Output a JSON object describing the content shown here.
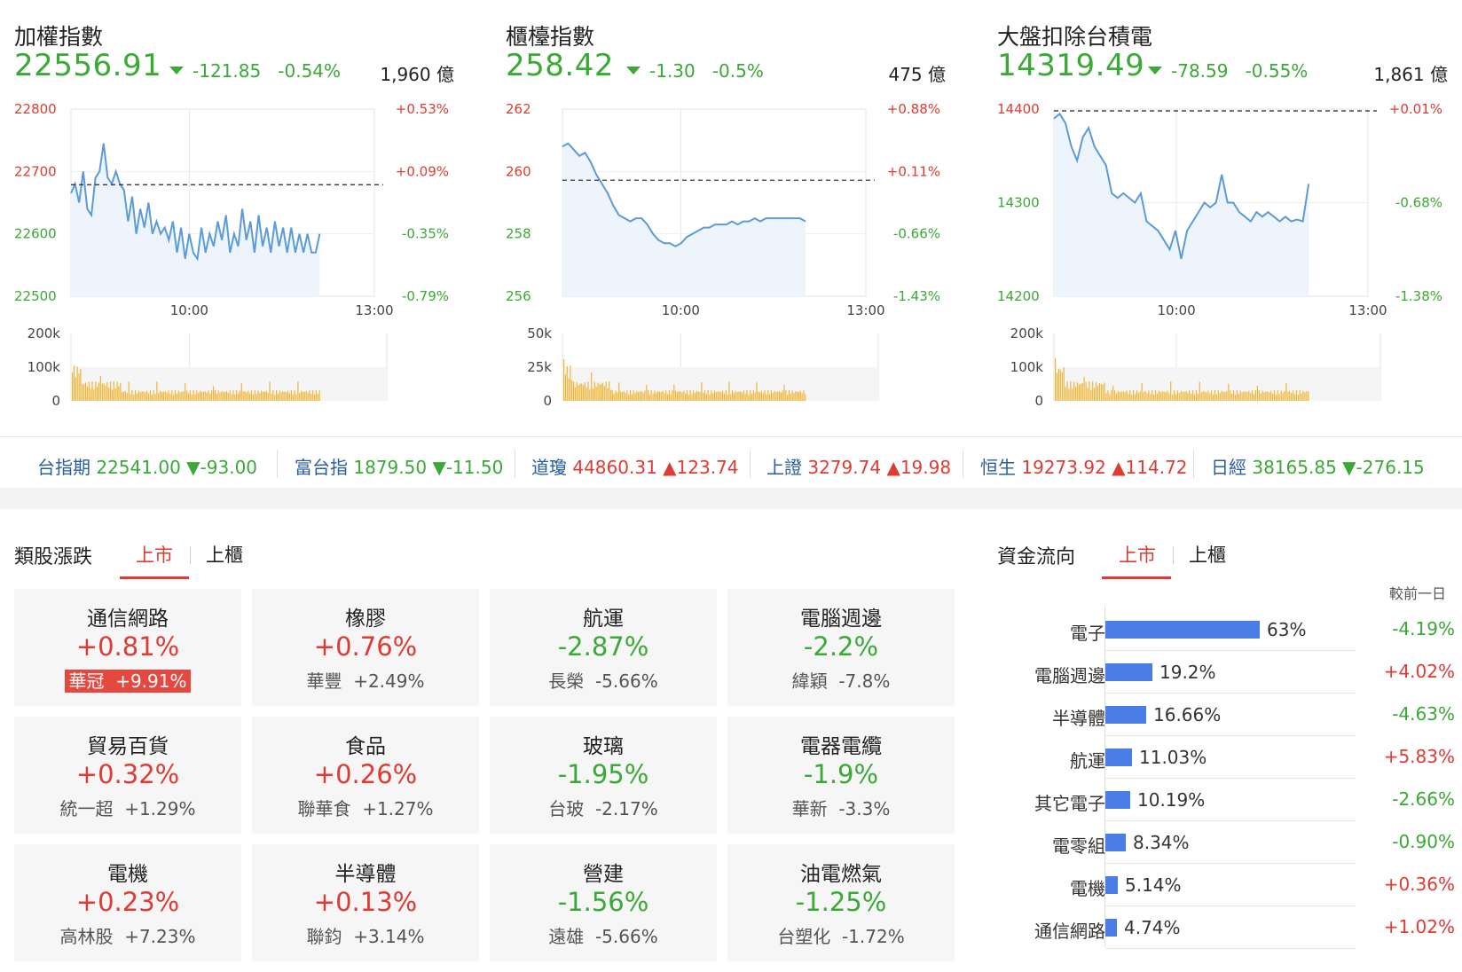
{
  "indices": [
    {
      "title": "加權指數",
      "value": "22556.91",
      "change": "-121.85",
      "percent": "-0.54%",
      "volume": "1,960 億",
      "y_left": [
        "22800",
        "22700",
        "22600",
        "22500"
      ],
      "y_right": [
        "+0.53%",
        "+0.09%",
        "-0.35%",
        "-0.79%"
      ],
      "y_left_colors": [
        "#e03b32",
        "#e03b32",
        "#3aa935",
        "#3aa935"
      ],
      "y_right_colors": [
        "#e03b32",
        "#e03b32",
        "#3aa935",
        "#3aa935"
      ],
      "x_labels": [
        "10:00",
        "13:00"
      ],
      "vol_labels": [
        "200k",
        "100k",
        "0"
      ],
      "prev_close": 22678.76,
      "ylim": [
        22500,
        22800
      ],
      "series": [
        22665,
        22680,
        22650,
        22700,
        22640,
        22630,
        22690,
        22700,
        22745,
        22690,
        22680,
        22700,
        22680,
        22670,
        22620,
        22660,
        22600,
        22640,
        22610,
        22650,
        22600,
        22620,
        22600,
        22610,
        22590,
        22620,
        22570,
        22610,
        22560,
        22600,
        22570,
        22560,
        22610,
        22570,
        22600,
        22580,
        22620,
        22590,
        22630,
        22570,
        22600,
        22580,
        22640,
        22590,
        22620,
        22570,
        22630,
        22580,
        22610,
        22570,
        22620,
        22580,
        22610,
        22570,
        22610,
        22570,
        22600,
        22570,
        22600,
        22570,
        22570,
        22600
      ]
    },
    {
      "title": "櫃檯指數",
      "value": "258.42",
      "change": "-1.30",
      "percent": "-0.5%",
      "volume": "475 億",
      "y_left": [
        "262",
        "260",
        "258",
        "256"
      ],
      "y_right": [
        "+0.88%",
        "+0.11%",
        "-0.66%",
        "-1.43%"
      ],
      "y_left_colors": [
        "#e03b32",
        "#e03b32",
        "#3aa935",
        "#3aa935"
      ],
      "y_right_colors": [
        "#e03b32",
        "#e03b32",
        "#3aa935",
        "#3aa935"
      ],
      "x_labels": [
        "10:00",
        "13:00"
      ],
      "vol_labels": [
        "50k",
        "25k",
        "0"
      ],
      "prev_close": 259.72,
      "ylim": [
        256,
        262
      ],
      "series": [
        260.8,
        260.9,
        260.7,
        260.5,
        260.6,
        260.3,
        259.9,
        259.6,
        259.3,
        258.9,
        258.6,
        258.5,
        258.4,
        258.5,
        258.5,
        258.3,
        258.0,
        257.8,
        257.7,
        257.7,
        257.6,
        257.7,
        257.9,
        258.0,
        258.1,
        258.2,
        258.2,
        258.3,
        258.3,
        258.3,
        258.4,
        258.3,
        258.4,
        258.4,
        258.5,
        258.4,
        258.5,
        258.5,
        258.5,
        258.5,
        258.5,
        258.5,
        258.5,
        258.4
      ]
    },
    {
      "title": "大盤扣除台積電",
      "value": "14319.49",
      "change": "-78.59",
      "percent": "-0.55%",
      "volume": "1,861 億",
      "y_left": [
        "14400",
        "14300",
        "14200"
      ],
      "y_right": [
        "+0.01%",
        "-0.68%",
        "-1.38%"
      ],
      "y_left_colors": [
        "#e03b32",
        "#3aa935",
        "#3aa935"
      ],
      "y_right_colors": [
        "#e03b32",
        "#3aa935",
        "#3aa935"
      ],
      "x_labels": [
        "10:00",
        "13:00"
      ],
      "vol_labels": [
        "200k",
        "100k",
        "0"
      ],
      "prev_close": 14398.08,
      "ylim": [
        14200,
        14400
      ],
      "series": [
        14390,
        14395,
        14385,
        14360,
        14345,
        14370,
        14380,
        14360,
        14350,
        14340,
        14310,
        14305,
        14310,
        14305,
        14300,
        14310,
        14280,
        14275,
        14270,
        14260,
        14250,
        14270,
        14240,
        14270,
        14280,
        14290,
        14300,
        14295,
        14300,
        14330,
        14300,
        14300,
        14290,
        14285,
        14280,
        14290,
        14285,
        14290,
        14285,
        14280,
        14285,
        14280,
        14282,
        14280,
        14320
      ]
    }
  ],
  "ticker": [
    {
      "name": "台指期",
      "value": "22541.00",
      "arrow": "▼",
      "change": "-93.00",
      "color": "#3aa935"
    },
    {
      "name": "富台指",
      "value": "1879.50",
      "arrow": "▼",
      "change": "-11.50",
      "color": "#3aa935"
    },
    {
      "name": "道瓊",
      "value": "44860.31",
      "arrow": "▲",
      "change": "123.74",
      "color": "#e03b32"
    },
    {
      "name": "上證",
      "value": "3279.74",
      "arrow": "▲",
      "change": "19.98",
      "color": "#e03b32"
    },
    {
      "name": "恒生",
      "value": "19273.92",
      "arrow": "▲",
      "change": "114.72",
      "color": "#e03b32"
    },
    {
      "name": "日經",
      "value": "38165.85",
      "arrow": "▼",
      "change": "-276.15",
      "color": "#3aa935"
    }
  ],
  "sectors": {
    "title": "類股漲跌",
    "tabs": [
      "上市",
      "上櫃"
    ],
    "cards": [
      {
        "name": "通信網路",
        "pct": "+0.81%",
        "dir": "up",
        "stock": "華冠",
        "stock_pct": "+9.91%",
        "highlight": true
      },
      {
        "name": "橡膠",
        "pct": "+0.76%",
        "dir": "up",
        "stock": "華豐",
        "stock_pct": "+2.49%",
        "highlight": false
      },
      {
        "name": "航運",
        "pct": "-2.87%",
        "dir": "down",
        "stock": "長榮",
        "stock_pct": "-5.66%",
        "highlight": false
      },
      {
        "name": "電腦週邊",
        "pct": "-2.2%",
        "dir": "down",
        "stock": "緯穎",
        "stock_pct": "-7.8%",
        "highlight": false
      },
      {
        "name": "貿易百貨",
        "pct": "+0.32%",
        "dir": "up",
        "stock": "統一超",
        "stock_pct": "+1.29%",
        "highlight": false
      },
      {
        "name": "食品",
        "pct": "+0.26%",
        "dir": "up",
        "stock": "聯華食",
        "stock_pct": "+1.27%",
        "highlight": false
      },
      {
        "name": "玻璃",
        "pct": "-1.95%",
        "dir": "down",
        "stock": "台玻",
        "stock_pct": "-2.17%",
        "highlight": false
      },
      {
        "name": "電器電纜",
        "pct": "-1.9%",
        "dir": "down",
        "stock": "華新",
        "stock_pct": "-3.3%",
        "highlight": false
      },
      {
        "name": "電機",
        "pct": "+0.23%",
        "dir": "up",
        "stock": "高林股",
        "stock_pct": "+7.23%",
        "highlight": false
      },
      {
        "name": "半導體",
        "pct": "+0.13%",
        "dir": "up",
        "stock": "聯鈞",
        "stock_pct": "+3.14%",
        "highlight": false
      },
      {
        "name": "營建",
        "pct": "-1.56%",
        "dir": "down",
        "stock": "遠雄",
        "stock_pct": "-5.66%",
        "highlight": false
      },
      {
        "name": "油電燃氣",
        "pct": "-1.25%",
        "dir": "down",
        "stock": "台塑化",
        "stock_pct": "-1.72%",
        "highlight": false
      }
    ]
  },
  "money_flow": {
    "title": "資金流向",
    "tabs": [
      "上市",
      "上櫃"
    ],
    "compare_label": "較前一日",
    "rows": [
      {
        "name": "電子",
        "share": 63,
        "pct": "63%",
        "cmp": "-4.19%",
        "dir": "down"
      },
      {
        "name": "電腦週邊",
        "share": 19.2,
        "pct": "19.2%",
        "cmp": "+4.02%",
        "dir": "up"
      },
      {
        "name": "半導體",
        "share": 16.66,
        "pct": "16.66%",
        "cmp": "-4.63%",
        "dir": "down"
      },
      {
        "name": "航運",
        "share": 11.03,
        "pct": "11.03%",
        "cmp": "+5.83%",
        "dir": "up"
      },
      {
        "name": "其它電子",
        "share": 10.19,
        "pct": "10.19%",
        "cmp": "-2.66%",
        "dir": "down"
      },
      {
        "name": "電零組",
        "share": 8.34,
        "pct": "8.34%",
        "cmp": "-0.90%",
        "dir": "down"
      },
      {
        "name": "電機",
        "share": 5.14,
        "pct": "5.14%",
        "cmp": "+0.36%",
        "dir": "up"
      },
      {
        "name": "通信網路",
        "share": 4.74,
        "pct": "4.74%",
        "cmp": "+1.02%",
        "dir": "up"
      }
    ]
  },
  "colors": {
    "up": "#e03b32",
    "down": "#3aa935",
    "line": "#5b9bd9",
    "fill": "#eef4fb",
    "volume": "#f1b535",
    "bar": "#4a7ee6"
  }
}
